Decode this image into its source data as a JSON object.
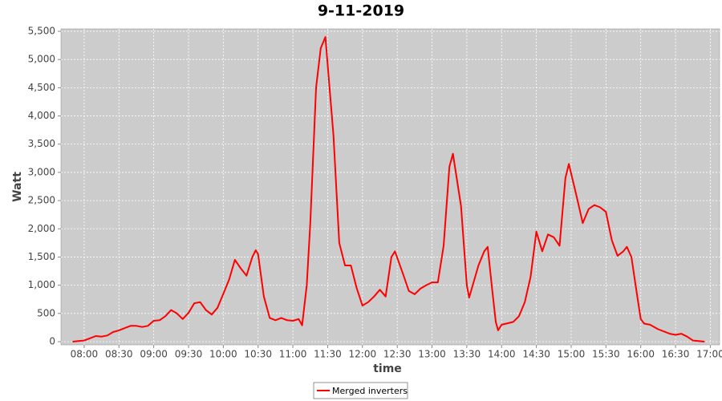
{
  "chart_data": {
    "type": "line",
    "title": "9-11-2019",
    "x_label": "time",
    "y_label": "Watt",
    "x": [
      "07:50",
      "07:55",
      "08:00",
      "08:05",
      "08:10",
      "08:15",
      "08:20",
      "08:25",
      "08:30",
      "08:35",
      "08:40",
      "08:45",
      "08:50",
      "08:55",
      "09:00",
      "09:05",
      "09:10",
      "09:15",
      "09:20",
      "09:25",
      "09:30",
      "09:35",
      "09:40",
      "09:45",
      "09:50",
      "09:55",
      "10:00",
      "10:05",
      "10:10",
      "10:15",
      "10:20",
      "10:25",
      "10:28",
      "10:30",
      "10:35",
      "10:40",
      "10:45",
      "10:50",
      "10:55",
      "11:00",
      "11:05",
      "11:08",
      "11:12",
      "11:15",
      "11:20",
      "11:24",
      "11:28",
      "11:35",
      "11:40",
      "11:45",
      "11:50",
      "11:55",
      "12:00",
      "12:05",
      "12:10",
      "12:15",
      "12:20",
      "12:25",
      "12:28",
      "12:35",
      "12:40",
      "12:45",
      "12:50",
      "12:55",
      "13:00",
      "13:05",
      "13:10",
      "13:15",
      "13:18",
      "13:25",
      "13:30",
      "13:32",
      "13:40",
      "13:45",
      "13:48",
      "13:52",
      "13:55",
      "13:57",
      "14:00",
      "14:10",
      "14:15",
      "14:20",
      "14:25",
      "14:30",
      "14:35",
      "14:40",
      "14:45",
      "14:50",
      "14:55",
      "14:58",
      "15:05",
      "15:10",
      "15:15",
      "15:20",
      "15:25",
      "15:30",
      "15:35",
      "15:40",
      "15:45",
      "15:48",
      "15:52",
      "15:57",
      "16:00",
      "16:03",
      "16:08",
      "16:15",
      "16:25",
      "16:30",
      "16:35",
      "16:40",
      "16:45",
      "16:50",
      "16:55"
    ],
    "series": [
      {
        "name": "Merged inverters",
        "color": "#ff0000",
        "values": [
          0,
          10,
          20,
          60,
          100,
          90,
          110,
          170,
          200,
          240,
          280,
          280,
          260,
          280,
          370,
          380,
          450,
          560,
          500,
          400,
          510,
          680,
          700,
          560,
          480,
          600,
          850,
          1100,
          1450,
          1300,
          1170,
          1500,
          1620,
          1550,
          800,
          420,
          380,
          420,
          380,
          370,
          400,
          290,
          1000,
          2100,
          4500,
          5200,
          5400,
          3650,
          1750,
          1350,
          1350,
          950,
          640,
          700,
          800,
          920,
          800,
          1500,
          1600,
          1200,
          900,
          840,
          940,
          1000,
          1050,
          1050,
          1700,
          3100,
          3330,
          2400,
          1000,
          780,
          1350,
          1600,
          1680,
          900,
          350,
          200,
          300,
          350,
          450,
          700,
          1150,
          1950,
          1600,
          1900,
          1850,
          1700,
          2900,
          3150,
          2550,
          2100,
          2350,
          2420,
          2380,
          2300,
          1800,
          1520,
          1600,
          1680,
          1500,
          800,
          400,
          320,
          300,
          220,
          140,
          120,
          140,
          90,
          20,
          10,
          0
        ]
      }
    ],
    "xlim": [
      "07:40",
      "17:08"
    ],
    "xticks": [
      "08:00",
      "08:30",
      "09:00",
      "09:30",
      "10:00",
      "10:30",
      "11:00",
      "11:30",
      "12:00",
      "12:30",
      "13:00",
      "13:30",
      "14:00",
      "14:30",
      "15:00",
      "15:30",
      "16:00",
      "16:30",
      "17:00"
    ],
    "ylim": [
      -57,
      5543
    ],
    "yticks": [
      0,
      500,
      {
        "value": 1000,
        "label": "1,000"
      },
      {
        "value": 1500,
        "label": "1,500"
      },
      {
        "value": 2000,
        "label": "2,000"
      },
      {
        "value": 2500,
        "label": "2,500"
      },
      {
        "value": 3000,
        "label": "3,000"
      },
      {
        "value": 3500,
        "label": "3,500"
      },
      {
        "value": 4000,
        "label": "4,000"
      },
      {
        "value": 4500,
        "label": "4,500"
      },
      {
        "value": 5000,
        "label": "5,000"
      },
      {
        "value": 5500,
        "label": "5,500"
      }
    ],
    "grid": true
  }
}
